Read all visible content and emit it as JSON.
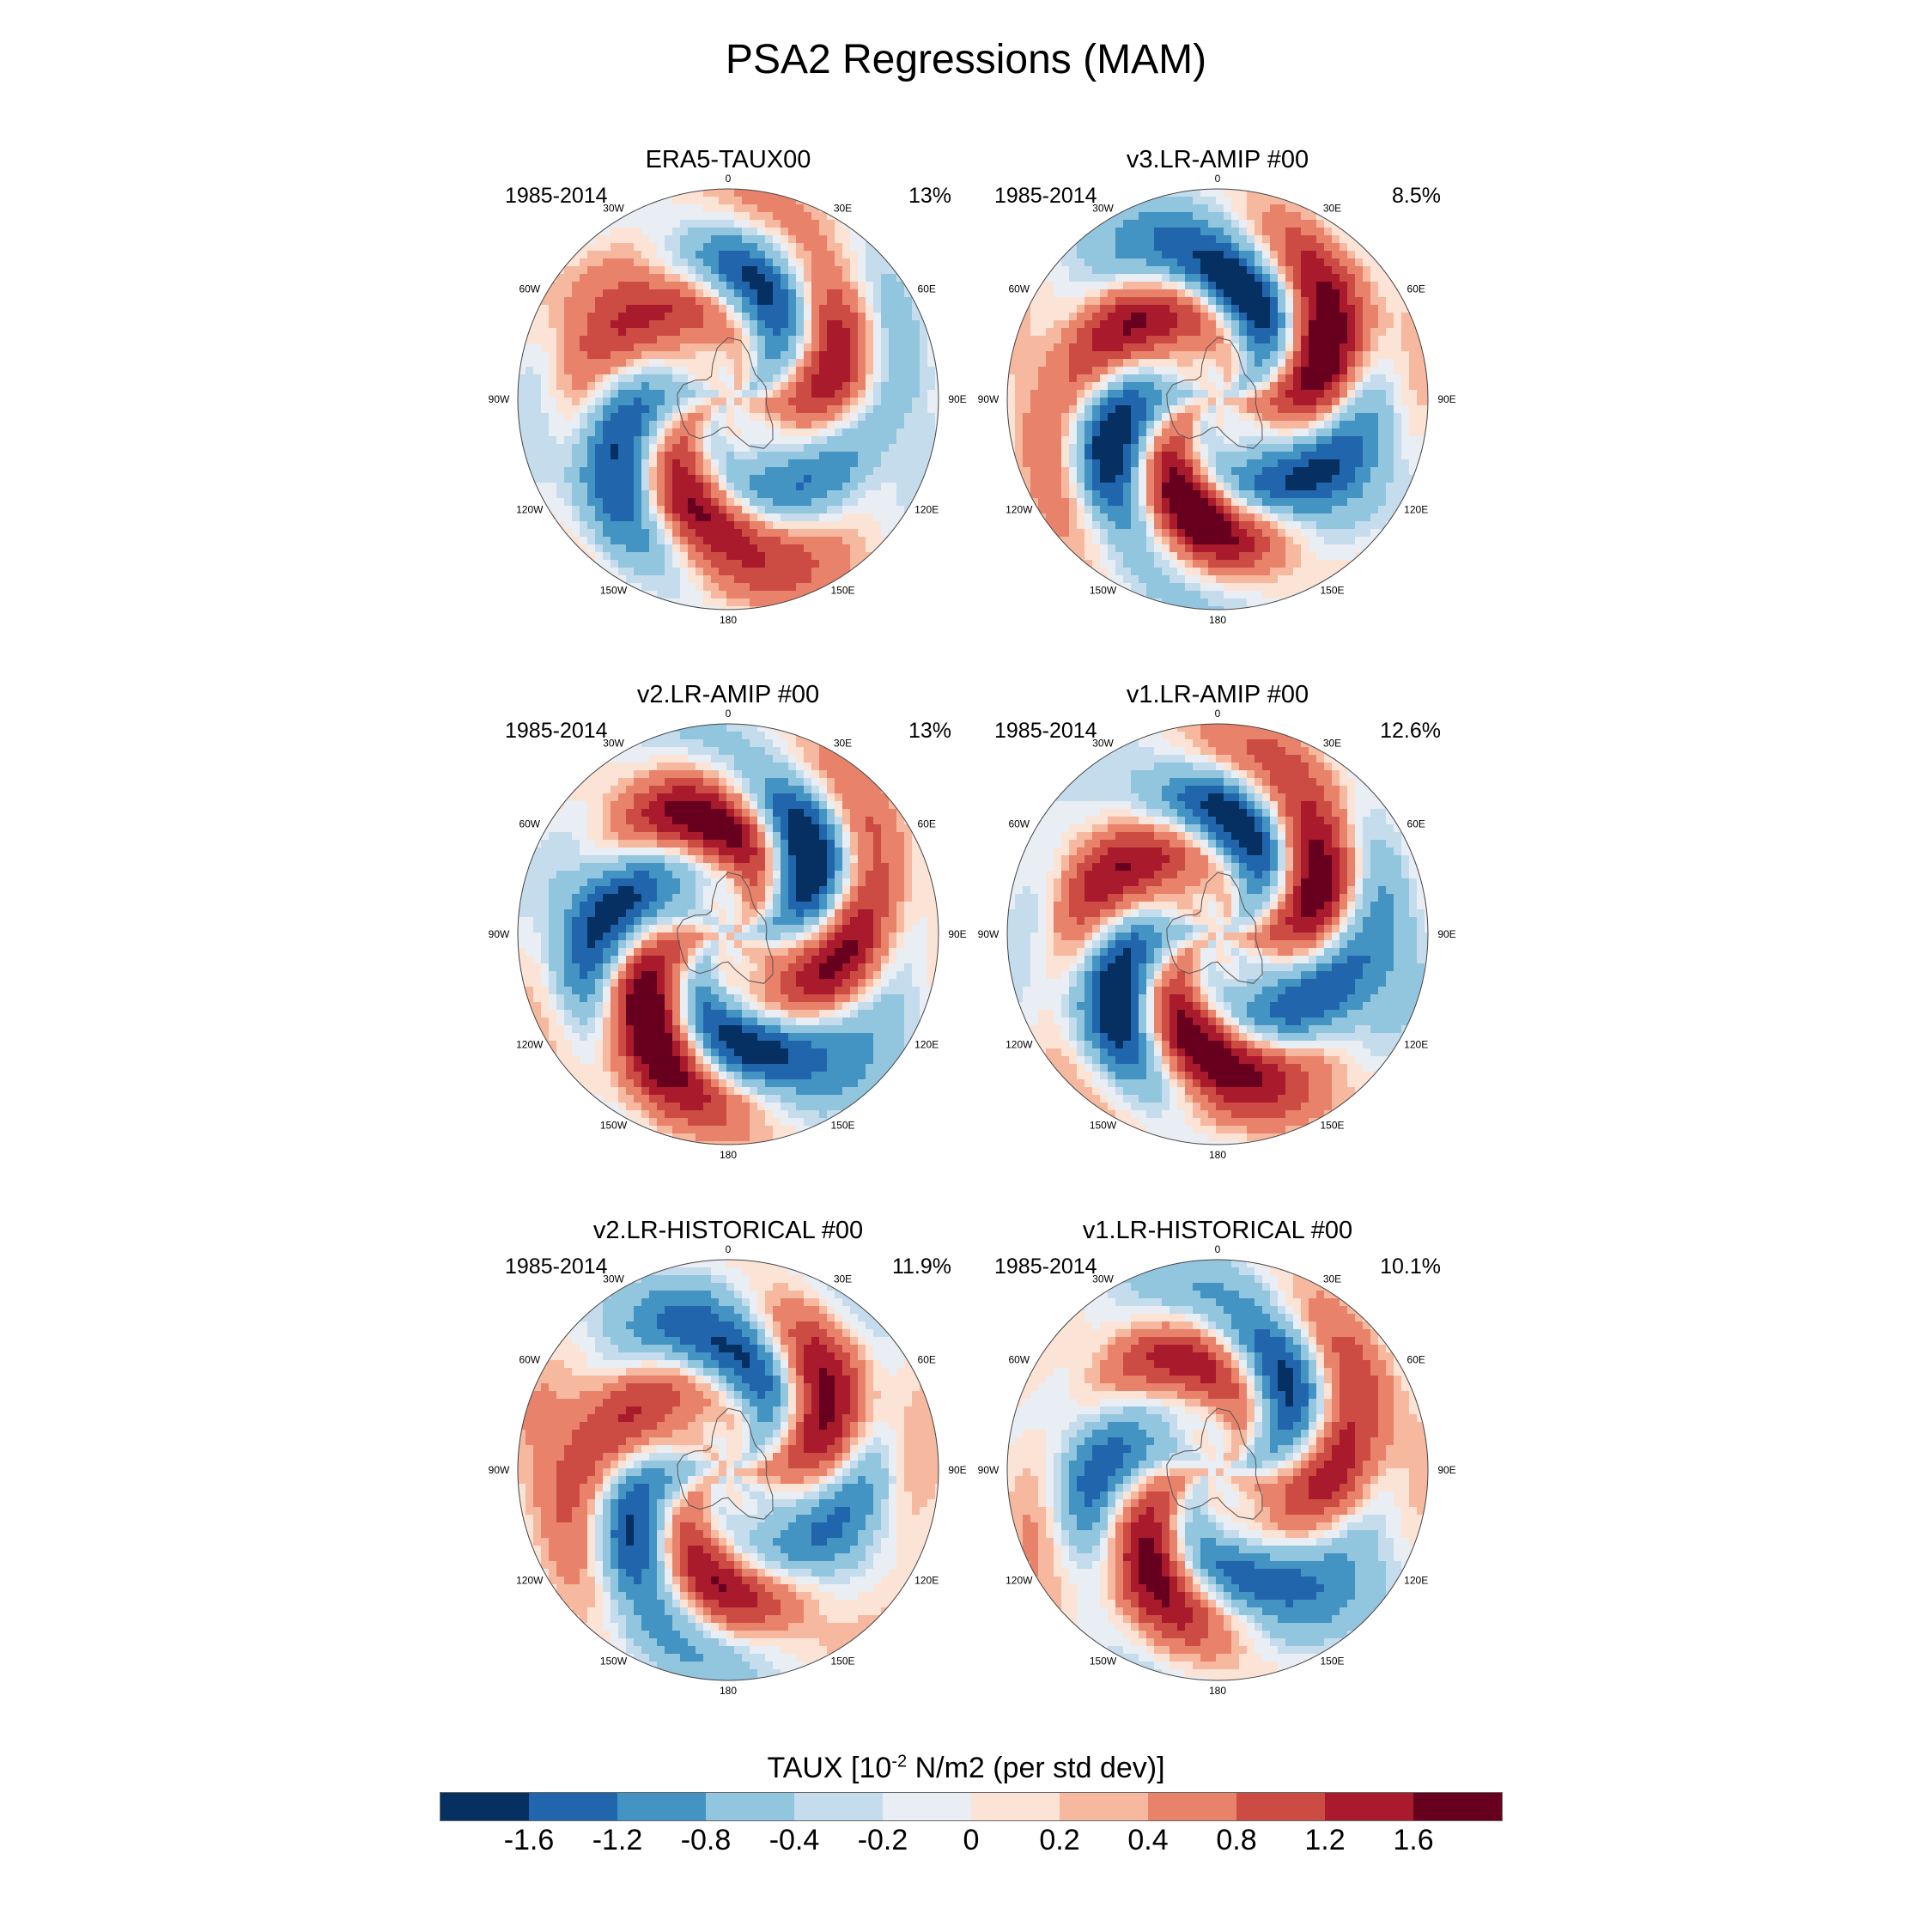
{
  "title": "PSA2 Regressions (MAM)",
  "lon_labels": [
    "0",
    "30E",
    "60E",
    "90E",
    "120E",
    "150E",
    "180",
    "150W",
    "120W",
    "90W",
    "60W",
    "30W"
  ],
  "panels": [
    {
      "title": "ERA5-TAUX00",
      "period": "1985-2014",
      "pct": "13%",
      "seed": 11
    },
    {
      "title": "v3.LR-AMIP  #00",
      "period": "1985-2014",
      "pct": "8.5%",
      "seed": 23
    },
    {
      "title": "v2.LR-AMIP  #00",
      "period": "1985-2014",
      "pct": "13%",
      "seed": 37
    },
    {
      "title": "v1.LR-AMIP  #00",
      "period": "1985-2014",
      "pct": "12.6%",
      "seed": 41
    },
    {
      "title": "v2.LR-HISTORICAL  #00",
      "period": "1985-2014",
      "pct": "11.9%",
      "seed": 53
    },
    {
      "title": "v1.LR-HISTORICAL  #00",
      "period": "1985-2014",
      "pct": "10.1%",
      "seed": 67
    }
  ],
  "colorbar": {
    "title_prefix": "TAUX [10",
    "title_exp": "-2",
    "title_suffix": " N/m2 (per std dev)]",
    "tick_labels": [
      "-1.6",
      "-1.2",
      "-0.8",
      "-0.4",
      "-0.2",
      "0",
      "0.2",
      "0.4",
      "0.8",
      "1.2",
      "1.6"
    ],
    "colors": [
      "#053061",
      "#2166ac",
      "#4393c3",
      "#92c5de",
      "#c5dcec",
      "#e8eef4",
      "#fbe3d6",
      "#f6b89e",
      "#e8826b",
      "#cc4c44",
      "#a91a2c",
      "#67001f"
    ]
  }
}
